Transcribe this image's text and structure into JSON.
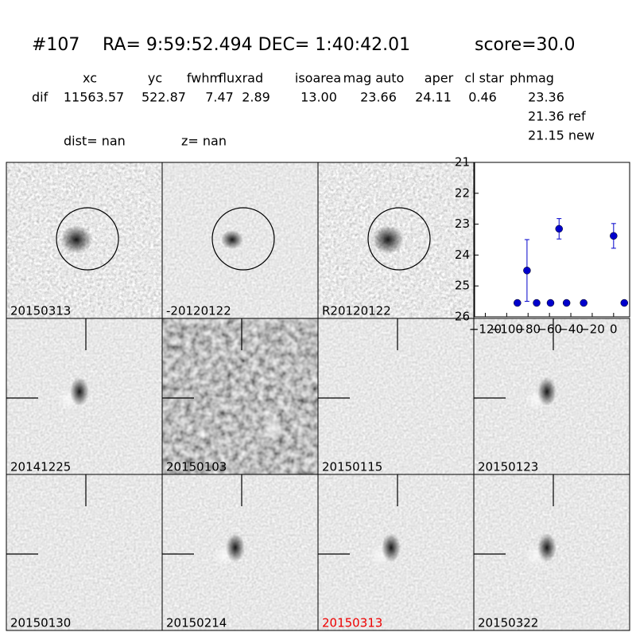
{
  "header": {
    "id": "#107",
    "coords": "RA= 9:59:52.494 DEC= 1:40:42.01",
    "score": "score=30.0",
    "columns": [
      "xc",
      "yc",
      "fwhm",
      "fluxrad",
      "isoarea",
      "mag auto",
      "aper",
      "cl star",
      "phmag"
    ],
    "row_label": "dif",
    "row": [
      "11563.57",
      "522.87",
      "7.47",
      "2.89",
      "13.00",
      "23.66",
      "24.11",
      "0.46",
      "23.36"
    ],
    "phmag_ref": "21.36 ref",
    "phmag_new": "21.15 new",
    "dist": "dist=   nan",
    "z": "z=   nan"
  },
  "panels": [
    "20150313",
    "-20120122",
    "R20120122",
    "20141225",
    "20150103",
    "20150115",
    "20150123",
    "20150130",
    "20150214",
    "20150313",
    "20150322"
  ],
  "chart_data": {
    "type": "scatter",
    "color": "#0000cc",
    "x": [
      -90,
      -81,
      -72,
      -59,
      -51,
      -44,
      -28,
      0,
      10
    ],
    "series": [
      {
        "name": "phmag",
        "values": [
          25.55,
          24.5,
          25.55,
          25.55,
          23.15,
          25.55,
          25.55,
          23.38,
          25.55
        ],
        "errors": [
          null,
          1.0,
          null,
          null,
          0.33,
          null,
          null,
          0.4,
          null
        ]
      }
    ],
    "xlim": [
      -130,
      15
    ],
    "ylim": [
      26,
      21
    ],
    "xticks": [
      {
        "value": -120,
        "label": "−120"
      },
      {
        "value": -100,
        "label": "−100"
      },
      {
        "value": -80,
        "label": "−80"
      },
      {
        "value": -60,
        "label": "−60"
      },
      {
        "value": -40,
        "label": "−40"
      },
      {
        "value": -20,
        "label": "−20"
      },
      0
    ],
    "yticks": [
      21,
      22,
      23,
      24,
      25,
      26
    ]
  }
}
